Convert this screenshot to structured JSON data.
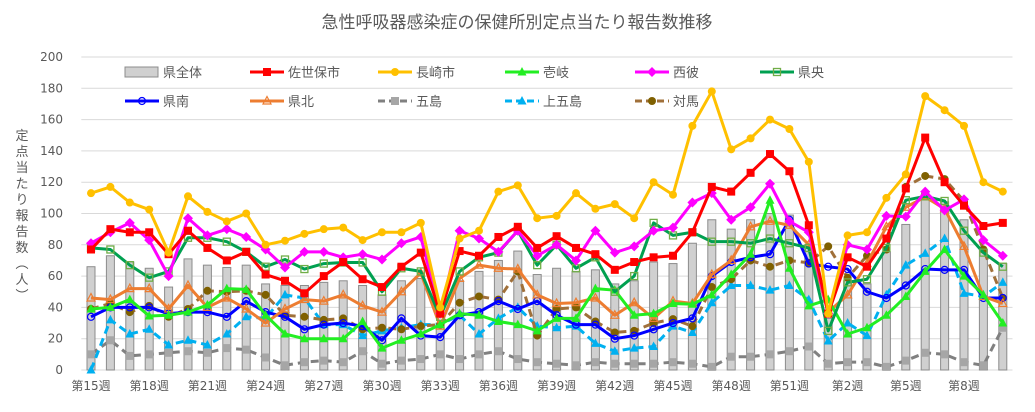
{
  "chart_data": {
    "type": "bar+line",
    "title": "急性呼吸器感染症の保健所別定点当たり報告数推移",
    "ylabel": "定点当たり報告数（人）",
    "xlabel": "",
    "ylim": [
      0,
      200
    ],
    "yticks": [
      0,
      20,
      40,
      60,
      80,
      100,
      120,
      140,
      160,
      180,
      200
    ],
    "grid": "horizontal",
    "legend_position": "top",
    "categories": [
      "第15週",
      "第16週",
      "第17週",
      "第18週",
      "第19週",
      "第20週",
      "第21週",
      "第22週",
      "第23週",
      "第24週",
      "第25週",
      "第26週",
      "第27週",
      "第28週",
      "第29週",
      "第30週",
      "第31週",
      "第32週",
      "第33週",
      "第34週",
      "第35週",
      "第36週",
      "第37週",
      "第38週",
      "第39週",
      "第40週",
      "第41週",
      "第42週",
      "第43週",
      "第44週",
      "第45週",
      "第46週",
      "第47週",
      "第48週",
      "第49週",
      "第50週",
      "第51週",
      "第52週",
      "第1週",
      "第2週",
      "第3週",
      "第4週",
      "第5週",
      "第6週",
      "第7週",
      "第8週",
      "第9週",
      "第10週"
    ],
    "shown_tick_labels": [
      "第15週",
      "第18週",
      "第21週",
      "第24週",
      "第27週",
      "第30週",
      "第33週",
      "第36週",
      "第39週",
      "第42週",
      "第45週",
      "第48週",
      "第51週",
      "第2週",
      "第5週",
      "第8週"
    ],
    "series": [
      {
        "name": "県全体",
        "kind": "bar",
        "color": "#d0d0d0",
        "border": "#8c8c8c",
        "values": [
          66,
          73,
          69,
          65,
          53,
          71,
          67,
          65.5,
          67,
          55,
          54,
          54,
          56,
          57,
          54,
          48,
          57,
          58.5,
          30,
          57,
          63,
          70,
          76,
          61,
          65,
          63,
          64,
          55,
          57,
          69,
          68,
          81,
          96,
          90,
          96,
          100,
          99,
          80,
          33,
          57,
          55,
          75.5,
          93,
          112,
          107.5,
          96,
          77,
          68
        ]
      },
      {
        "name": "佐世保市",
        "kind": "line",
        "color": "#ff0000",
        "marker": "square",
        "dash": false,
        "values": [
          77,
          90,
          88,
          88,
          74,
          89,
          78,
          70,
          75.5,
          61,
          57,
          49,
          60,
          69,
          58,
          53,
          66,
          75,
          36,
          76,
          73,
          85,
          91.5,
          78,
          85.5,
          78,
          74,
          64,
          69,
          72,
          73,
          88,
          117,
          114,
          126,
          138,
          127,
          92.5,
          36,
          72,
          66,
          84,
          116,
          148.5,
          120,
          105,
          92,
          94
        ]
      },
      {
        "name": "長崎市",
        "kind": "line",
        "color": "#ffc000",
        "marker": "circle",
        "dash": false,
        "values": [
          113,
          117,
          107,
          102.5,
          75,
          111,
          101,
          95,
          100,
          80,
          82.6,
          87,
          90,
          91,
          83,
          88,
          88,
          94,
          40,
          84,
          89,
          114,
          118,
          97,
          98.5,
          113,
          103,
          106,
          97,
          120,
          112,
          156,
          178,
          141,
          148,
          160,
          154,
          133,
          36,
          86,
          88,
          110,
          125,
          175,
          166,
          156,
          120,
          114
        ]
      },
      {
        "name": "壱岐",
        "kind": "line",
        "color": "#22ee22",
        "marker": "triangle",
        "dash": false,
        "values": [
          39,
          40,
          45,
          34.5,
          35,
          37,
          41.5,
          52,
          51.5,
          35,
          23,
          20,
          20,
          20,
          31,
          14,
          19,
          23,
          29,
          36,
          35,
          31,
          29,
          25,
          33,
          33,
          52,
          51,
          35,
          36,
          42.5,
          42,
          48,
          61,
          74,
          108.5,
          65,
          41,
          45,
          23,
          27,
          35,
          47,
          63,
          77,
          60,
          48,
          30
        ]
      },
      {
        "name": "西彼",
        "kind": "line",
        "color": "#ff00ff",
        "marker": "diamond",
        "dash": false,
        "values": [
          81,
          88,
          94,
          83,
          60,
          97,
          86,
          90,
          85,
          77,
          65.5,
          75.5,
          75.5,
          72,
          74,
          70.6,
          81,
          85,
          36,
          89,
          84,
          75.5,
          89,
          73,
          80,
          70,
          89,
          75,
          79,
          89,
          91,
          107,
          113,
          96,
          104,
          119,
          95,
          88,
          36,
          80,
          77,
          98.5,
          98,
          114,
          102,
          109,
          83,
          73
        ]
      },
      {
        "name": "県央",
        "kind": "line",
        "color": "#00a050",
        "marker": "hollow-square",
        "markerColor": "#70ad47",
        "dash": false,
        "values": [
          78,
          77,
          67,
          59,
          63,
          84.5,
          84.5,
          82,
          75.5,
          66,
          70.6,
          64.5,
          68,
          68.7,
          68.7,
          50,
          65,
          63,
          34,
          63,
          72,
          75,
          89,
          67,
          80,
          65,
          72,
          50,
          60,
          94,
          86,
          88,
          82,
          82,
          81,
          84,
          81,
          78,
          25,
          56,
          58,
          78,
          108.5,
          111,
          108,
          89,
          75,
          66
        ]
      },
      {
        "name": "県南",
        "kind": "line",
        "color": "#0000ff",
        "marker": "hollow-circle",
        "dash": false,
        "values": [
          34,
          40,
          40,
          40,
          36,
          37,
          37,
          34,
          44,
          37,
          34,
          26,
          29,
          30,
          28,
          19,
          33,
          22,
          21,
          35,
          37,
          44,
          39,
          44,
          35,
          29,
          29,
          20,
          22,
          26,
          30,
          33,
          60,
          69,
          72,
          74,
          96,
          68,
          66,
          64.5,
          50,
          46,
          54,
          64.5,
          64,
          64,
          46,
          46
        ]
      },
      {
        "name": "県北",
        "kind": "line",
        "color": "#ed7d31",
        "marker": "hollow-triangle",
        "dash": false,
        "values": [
          46,
          45,
          52,
          52,
          39,
          54,
          40,
          46,
          39,
          30,
          39,
          45,
          44,
          48,
          41,
          37,
          50,
          62,
          28,
          58.5,
          67,
          65,
          64.5,
          48,
          42.5,
          43,
          46,
          35,
          43,
          33,
          44,
          42.5,
          61,
          70,
          91.5,
          95,
          92.5,
          80,
          37,
          48,
          68,
          91.5,
          104,
          110.6,
          103,
          79,
          47,
          42.5
        ]
      },
      {
        "name": "五島",
        "kind": "line",
        "color": "#808080",
        "marker": "square",
        "markerColor": "#a6a6a6",
        "dash": true,
        "values": [
          10,
          19,
          9,
          10,
          11,
          12,
          11,
          14,
          13,
          8,
          3,
          5,
          6,
          5,
          12,
          4,
          6,
          7,
          10,
          7,
          10,
          12,
          7,
          5,
          4,
          3,
          5,
          4,
          4,
          4,
          5,
          4,
          2,
          8.5,
          8.5,
          10,
          12,
          15,
          4,
          5,
          5,
          2,
          6,
          11,
          10,
          5,
          3,
          27
        ]
      },
      {
        "name": "上五島",
        "kind": "line",
        "color": "#00b0f0",
        "marker": "triangle",
        "dash": true,
        "values": [
          0,
          32,
          23,
          26,
          16,
          19,
          16,
          23,
          34,
          33,
          48,
          46,
          29,
          29,
          22,
          25,
          27,
          29,
          29,
          35,
          23,
          33,
          40,
          28,
          27,
          28,
          17,
          12,
          14,
          15,
          28,
          24,
          43,
          54,
          54,
          51,
          54,
          45,
          18.5,
          30,
          22,
          48,
          67,
          74.5,
          84,
          49,
          47,
          56
        ]
      },
      {
        "name": "対馬",
        "kind": "line",
        "color": "#a0703a",
        "marker": "circle",
        "markerColor": "#7f6000",
        "dash": true,
        "values": [
          39,
          42.5,
          37,
          41,
          34,
          39,
          50.6,
          50,
          50.6,
          48,
          35,
          34,
          32,
          33,
          26,
          27,
          26,
          28,
          29,
          43,
          47,
          45,
          63,
          22,
          39,
          40,
          31,
          24,
          25,
          30,
          32.5,
          28,
          53,
          58,
          70,
          66,
          70,
          68.5,
          79,
          59,
          73,
          77,
          117,
          124,
          122,
          108,
          77,
          46
        ]
      }
    ]
  }
}
